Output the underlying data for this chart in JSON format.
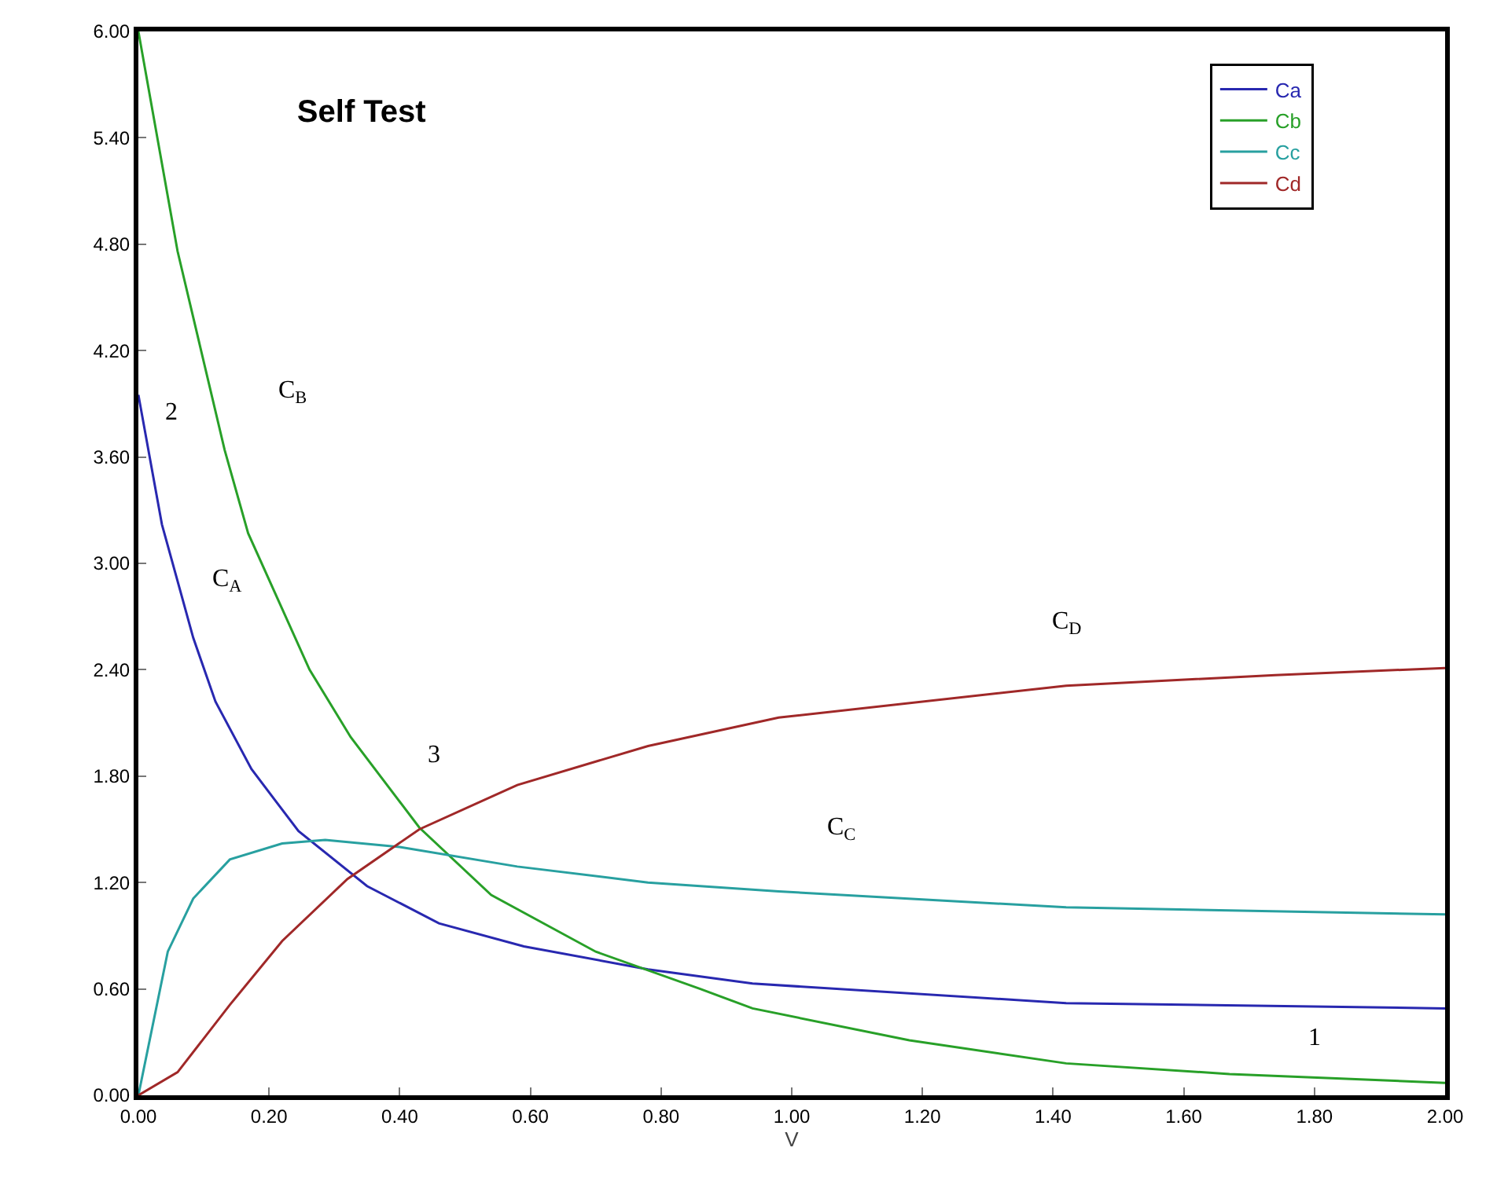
{
  "chart_data": {
    "type": "line",
    "title": "Self Test",
    "xlabel": "V",
    "xlim": [
      0,
      2
    ],
    "ylim": [
      0,
      6
    ],
    "xticks": [
      {
        "value": 0,
        "label": "0.00"
      },
      {
        "value": 0.2,
        "label": "0.20"
      },
      {
        "value": 0.4,
        "label": "0.40"
      },
      {
        "value": 0.6,
        "label": "0.60"
      },
      {
        "value": 0.8,
        "label": "0.80"
      },
      {
        "value": 1,
        "label": "1.00"
      },
      {
        "value": 1.2,
        "label": "1.20"
      },
      {
        "value": 1.4,
        "label": "1.40"
      },
      {
        "value": 1.6,
        "label": "1.60"
      },
      {
        "value": 1.8,
        "label": "1.80"
      },
      {
        "value": 2,
        "label": "2.00"
      }
    ],
    "yticks": [
      {
        "value": 0,
        "label": "0.00"
      },
      {
        "value": 0.6,
        "label": "0.60"
      },
      {
        "value": 1.2,
        "label": "1.20"
      },
      {
        "value": 1.8,
        "label": "1.80"
      },
      {
        "value": 2.4,
        "label": "2.40"
      },
      {
        "value": 3,
        "label": "3.00"
      },
      {
        "value": 3.6,
        "label": "3.60"
      },
      {
        "value": 4.2,
        "label": "4.20"
      },
      {
        "value": 4.8,
        "label": "4.80"
      },
      {
        "value": 5.4,
        "label": "5.40"
      },
      {
        "value": 6,
        "label": "6.00"
      }
    ],
    "grid": false,
    "legend": "top right",
    "marker": "none",
    "line_style": "solid",
    "series": [
      {
        "name": "Ca",
        "color": "#2828b0",
        "x": [
          0,
          0.036,
          0.084,
          0.118,
          0.173,
          0.245,
          0.35,
          0.46,
          0.59,
          0.78,
          0.94,
          1.42,
          2.0
        ],
        "values": [
          3.95,
          3.22,
          2.58,
          2.22,
          1.84,
          1.49,
          1.18,
          0.97,
          0.84,
          0.71,
          0.63,
          0.52,
          0.49
        ]
      },
      {
        "name": "Cb",
        "color": "#28a028",
        "x": [
          0,
          0.06,
          0.132,
          0.168,
          0.262,
          0.325,
          0.43,
          0.54,
          0.7,
          0.86,
          0.94,
          1.18,
          1.42,
          1.67,
          2.0
        ],
        "values": [
          6.0,
          4.76,
          3.64,
          3.17,
          2.4,
          2.02,
          1.51,
          1.13,
          0.81,
          0.6,
          0.49,
          0.31,
          0.18,
          0.12,
          0.07
        ]
      },
      {
        "name": "Cc",
        "color": "#28a0a0",
        "x": [
          0,
          0.045,
          0.084,
          0.14,
          0.22,
          0.286,
          0.4,
          0.58,
          0.78,
          0.98,
          1.42,
          2.0
        ],
        "values": [
          0,
          0.81,
          1.11,
          1.33,
          1.42,
          1.44,
          1.4,
          1.29,
          1.2,
          1.15,
          1.06,
          1.02
        ]
      },
      {
        "name": "Cd",
        "color": "#a02828",
        "x": [
          0,
          0.06,
          0.14,
          0.22,
          0.32,
          0.43,
          0.58,
          0.78,
          0.98,
          1.42,
          1.74,
          2.0
        ],
        "values": [
          0,
          0.13,
          0.51,
          0.87,
          1.22,
          1.5,
          1.75,
          1.97,
          2.13,
          2.31,
          2.37,
          2.41
        ]
      }
    ],
    "annotations": [
      "2",
      "C$_{B}$",
      "C$_{A}$",
      "3",
      "C$_{C}$",
      "C$_{D}$",
      "1"
    ]
  }
}
